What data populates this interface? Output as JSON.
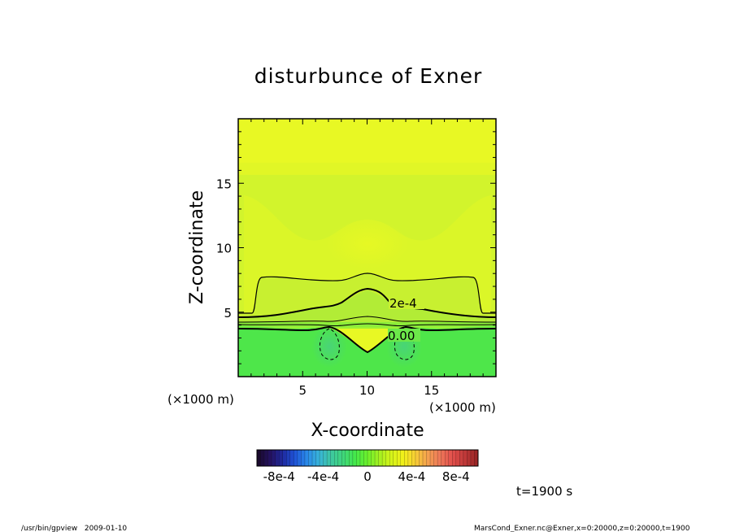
{
  "chart_data": {
    "type": "heatmap",
    "title": "disturbunce of Exner",
    "xlabel": "X-coordinate",
    "ylabel": "Z-coordinate",
    "xunit": "(×1000 m)",
    "yunit": "(×1000 m)",
    "xlim": [
      0,
      20
    ],
    "ylim": [
      0,
      20
    ],
    "xticks": [
      5,
      10,
      15
    ],
    "yticks": [
      5,
      10,
      15
    ],
    "contour_labels": [
      "2e-4",
      "0.00"
    ],
    "colorbar": {
      "ticks": [
        "-8e-4",
        "-4e-4",
        "0",
        "4e-4",
        "8e-4"
      ],
      "range": [
        -0.001,
        0.001
      ],
      "colors": [
        "#1a0a2e",
        "#241262",
        "#1f2aa0",
        "#1f55d8",
        "#2a8ae8",
        "#38b4d8",
        "#3ec7a0",
        "#3fd77a",
        "#44e84a",
        "#6cf02c",
        "#a6f020",
        "#d6f41a",
        "#f2f01a",
        "#f7cc38",
        "#f4a050",
        "#ee7858",
        "#e2504c",
        "#c23a3a",
        "#9a2626"
      ]
    },
    "time_label": "t=1900 s"
  },
  "footer": {
    "left": "/usr/bin/gpview   2009-01-10",
    "right": "MarsCond_Exner.nc@Exner,x=0:20000,z=0:20000,t=1900"
  }
}
